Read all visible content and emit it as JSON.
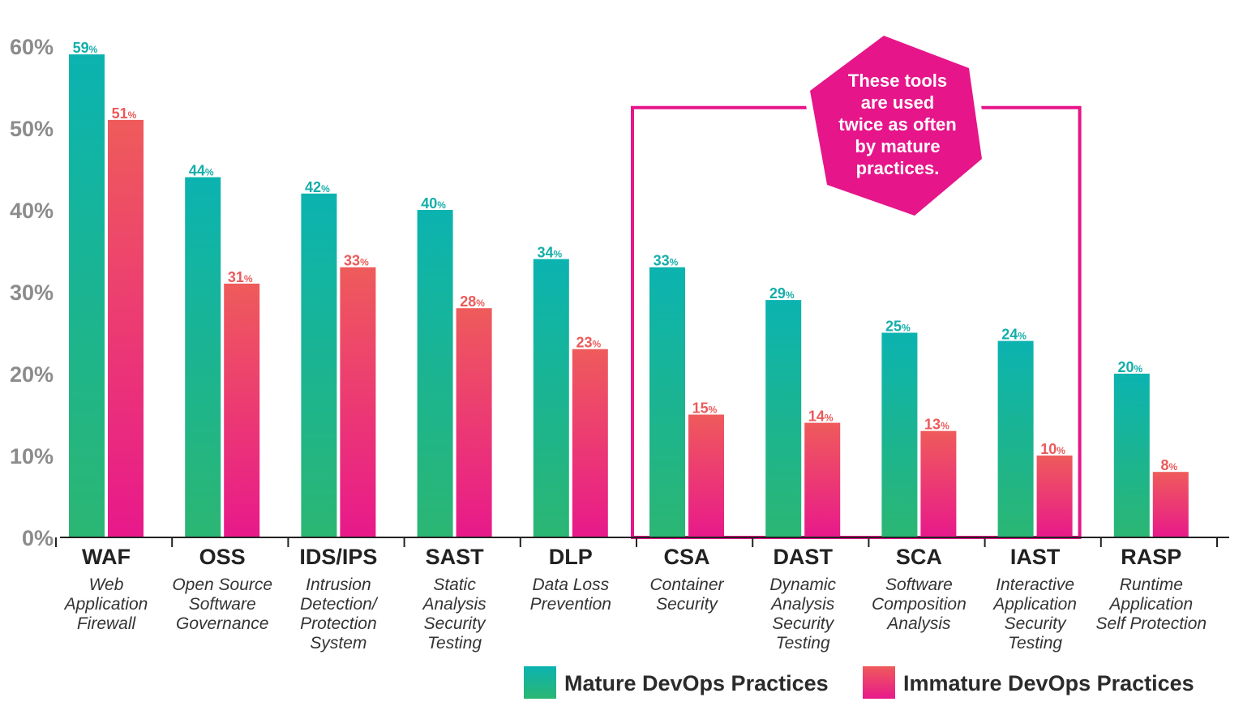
{
  "chart_data": {
    "type": "bar",
    "categories": [
      "WAF",
      "OSS",
      "IDS/IPS",
      "SAST",
      "DLP",
      "CSA",
      "DAST",
      "SCA",
      "IAST",
      "RASP"
    ],
    "category_descriptions": [
      [
        "Web",
        "Application",
        "Firewall"
      ],
      [
        "Open Source",
        "Software",
        "Governance"
      ],
      [
        "Intrusion",
        "Detection/",
        "Protection",
        "System"
      ],
      [
        "Static",
        "Analysis",
        "Security",
        "Testing"
      ],
      [
        "Data Loss",
        "Prevention"
      ],
      [
        "Container",
        "Security"
      ],
      [
        "Dynamic",
        "Analysis",
        "Security",
        "Testing"
      ],
      [
        "Software",
        "Composition",
        "Analysis"
      ],
      [
        "Interactive",
        "Application",
        "Security",
        "Testing"
      ],
      [
        "Runtime",
        "Application",
        "Self Protection"
      ]
    ],
    "series": [
      {
        "name": "Mature DevOps Practices",
        "values": [
          59,
          44,
          42,
          40,
          34,
          33,
          29,
          25,
          24,
          20
        ]
      },
      {
        "name": "Immature DevOps Practices",
        "values": [
          51,
          31,
          33,
          28,
          23,
          15,
          14,
          13,
          10,
          8
        ]
      }
    ],
    "value_suffix": "%",
    "ylim": [
      0,
      60
    ],
    "yticks": [
      "0%",
      "10%",
      "20%",
      "30%",
      "40%",
      "50%",
      "60%"
    ],
    "xlabel": "",
    "ylabel": "",
    "title": "",
    "grid": false,
    "legend_position": "bottom-right",
    "highlighted_categories": [
      "CSA",
      "DAST",
      "SCA",
      "IAST"
    ],
    "callout_text": [
      "These tools",
      "are used",
      "twice as often",
      "by mature",
      "practices."
    ],
    "colors": {
      "mature_top": "#0bb3b0",
      "mature_bottom": "#2bb673",
      "mature_label": "#14aeaa",
      "immature_top": "#ef5b5b",
      "immature_bottom": "#e8198b",
      "immature_label": "#ec5a5a",
      "highlight": "#e6158a",
      "axis": "#222222",
      "tick_label": "#8c8c8c"
    }
  }
}
